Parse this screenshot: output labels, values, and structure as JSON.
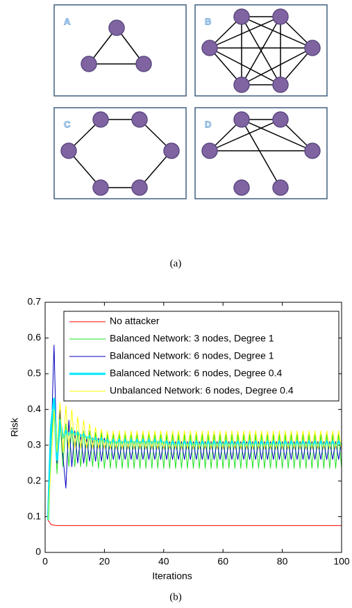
{
  "figure": {
    "panels": [
      {
        "label": "A"
      },
      {
        "label": "B"
      },
      {
        "label": "C"
      },
      {
        "label": "D"
      }
    ],
    "caption_a": "(a)",
    "caption_b": "(b)"
  },
  "chart_data": {
    "type": "line",
    "xlabel": "Iterations",
    "ylabel": "Risk",
    "xlim": [
      0,
      100
    ],
    "xticks": [
      0,
      20,
      40,
      60,
      80,
      100
    ],
    "ylim": [
      0,
      0.7
    ],
    "yticks": [
      0,
      0.1,
      0.2,
      0.3,
      0.4,
      0.5,
      0.6,
      0.7
    ],
    "legend": "upper right",
    "x": [
      1,
      2,
      3,
      4,
      5,
      6,
      7,
      8,
      9,
      10,
      11,
      12,
      13,
      14,
      15,
      16,
      17,
      18,
      19,
      20,
      21,
      22,
      23,
      24,
      25,
      26,
      27,
      28,
      29,
      30,
      31,
      32,
      33,
      34,
      35,
      36,
      37,
      38,
      39,
      40,
      41,
      42,
      43,
      44,
      45,
      46,
      47,
      48,
      49,
      50,
      51,
      52,
      53,
      54,
      55,
      56,
      57,
      58,
      59,
      60,
      61,
      62,
      63,
      64,
      65,
      66,
      67,
      68,
      69,
      70,
      71,
      72,
      73,
      74,
      75,
      76,
      77,
      78,
      79,
      80,
      81,
      82,
      83,
      84,
      85,
      86,
      87,
      88,
      89,
      90,
      91,
      92,
      93,
      94,
      95,
      96,
      97,
      98,
      99,
      100
    ],
    "series": [
      {
        "name": "No attacker",
        "color": "#ff0000",
        "width": 1,
        "values": [
          0.09,
          0.078,
          0.076,
          0.075,
          0.075,
          0.075,
          0.075,
          0.075,
          0.075,
          0.075,
          0.075,
          0.075,
          0.075,
          0.075,
          0.075,
          0.075,
          0.075,
          0.075,
          0.075,
          0.075,
          0.075,
          0.075,
          0.075,
          0.075,
          0.075,
          0.075,
          0.075,
          0.075,
          0.075,
          0.075,
          0.075,
          0.075,
          0.075,
          0.075,
          0.075,
          0.075,
          0.075,
          0.075,
          0.075,
          0.075,
          0.075,
          0.075,
          0.075,
          0.075,
          0.075,
          0.075,
          0.075,
          0.075,
          0.075,
          0.075,
          0.075,
          0.075,
          0.075,
          0.075,
          0.075,
          0.075,
          0.075,
          0.075,
          0.075,
          0.075,
          0.075,
          0.075,
          0.075,
          0.075,
          0.075,
          0.075,
          0.075,
          0.075,
          0.075,
          0.075,
          0.075,
          0.075,
          0.075,
          0.075,
          0.075,
          0.075,
          0.075,
          0.075,
          0.075,
          0.075,
          0.075,
          0.075,
          0.075,
          0.075,
          0.075,
          0.075,
          0.075,
          0.075,
          0.075,
          0.075,
          0.075,
          0.075,
          0.075,
          0.075,
          0.075,
          0.075,
          0.075,
          0.075,
          0.075,
          0.075
        ]
      },
      {
        "name": "Balanced Network: 3 nodes, Degree 1",
        "color": "#22e022",
        "width": 1,
        "values": [
          0.09,
          0.3,
          0.42,
          0.22,
          0.38,
          0.24,
          0.36,
          0.24,
          0.35,
          0.24,
          0.34,
          0.24,
          0.34,
          0.24,
          0.34,
          0.24,
          0.335,
          0.235,
          0.335,
          0.235,
          0.33,
          0.235,
          0.33,
          0.235,
          0.33,
          0.235,
          0.33,
          0.235,
          0.33,
          0.235,
          0.33,
          0.235,
          0.33,
          0.235,
          0.33,
          0.235,
          0.33,
          0.235,
          0.33,
          0.235,
          0.33,
          0.235,
          0.33,
          0.235,
          0.33,
          0.235,
          0.33,
          0.235,
          0.33,
          0.235,
          0.33,
          0.235,
          0.33,
          0.235,
          0.33,
          0.235,
          0.33,
          0.235,
          0.33,
          0.235,
          0.33,
          0.235,
          0.33,
          0.235,
          0.33,
          0.235,
          0.33,
          0.235,
          0.33,
          0.235,
          0.33,
          0.235,
          0.33,
          0.235,
          0.33,
          0.235,
          0.33,
          0.235,
          0.33,
          0.235,
          0.33,
          0.235,
          0.33,
          0.235,
          0.33,
          0.235,
          0.33,
          0.235,
          0.33,
          0.235,
          0.33,
          0.235,
          0.33,
          0.235,
          0.33,
          0.235,
          0.33,
          0.235,
          0.33,
          0.235
        ]
      },
      {
        "name": "Balanced Network: 6 nodes, Degree 1",
        "color": "#0000c0",
        "width": 1,
        "values": [
          0.09,
          0.3,
          0.58,
          0.25,
          0.4,
          0.27,
          0.18,
          0.37,
          0.24,
          0.34,
          0.25,
          0.33,
          0.25,
          0.32,
          0.255,
          0.32,
          0.255,
          0.32,
          0.255,
          0.32,
          0.26,
          0.31,
          0.26,
          0.31,
          0.26,
          0.31,
          0.26,
          0.31,
          0.26,
          0.31,
          0.26,
          0.31,
          0.26,
          0.31,
          0.26,
          0.31,
          0.26,
          0.31,
          0.26,
          0.31,
          0.26,
          0.31,
          0.26,
          0.31,
          0.26,
          0.31,
          0.26,
          0.31,
          0.26,
          0.31,
          0.26,
          0.31,
          0.26,
          0.31,
          0.26,
          0.31,
          0.26,
          0.31,
          0.26,
          0.31,
          0.26,
          0.31,
          0.26,
          0.31,
          0.26,
          0.31,
          0.26,
          0.31,
          0.26,
          0.31,
          0.26,
          0.31,
          0.26,
          0.31,
          0.26,
          0.31,
          0.26,
          0.31,
          0.26,
          0.31,
          0.26,
          0.31,
          0.26,
          0.31,
          0.26,
          0.31,
          0.26,
          0.31,
          0.26,
          0.31,
          0.26,
          0.31,
          0.26,
          0.31,
          0.26,
          0.31,
          0.26,
          0.31,
          0.26,
          0.31
        ]
      },
      {
        "name": "Balanced Network: 6 nodes, Degree 0.4",
        "color": "#00e5ff",
        "width": 3,
        "values": [
          0.09,
          0.35,
          0.43,
          0.26,
          0.37,
          0.32,
          0.34,
          0.33,
          0.34,
          0.33,
          0.335,
          0.325,
          0.33,
          0.32,
          0.325,
          0.315,
          0.32,
          0.31,
          0.32,
          0.31,
          0.315,
          0.305,
          0.315,
          0.305,
          0.315,
          0.305,
          0.315,
          0.305,
          0.315,
          0.305,
          0.315,
          0.305,
          0.315,
          0.305,
          0.315,
          0.305,
          0.315,
          0.305,
          0.315,
          0.305,
          0.31,
          0.3,
          0.31,
          0.3,
          0.31,
          0.3,
          0.31,
          0.3,
          0.31,
          0.3,
          0.31,
          0.3,
          0.31,
          0.3,
          0.31,
          0.3,
          0.31,
          0.3,
          0.31,
          0.3,
          0.31,
          0.3,
          0.31,
          0.3,
          0.31,
          0.3,
          0.31,
          0.3,
          0.31,
          0.3,
          0.31,
          0.3,
          0.31,
          0.3,
          0.31,
          0.3,
          0.31,
          0.3,
          0.31,
          0.3,
          0.31,
          0.3,
          0.31,
          0.3,
          0.31,
          0.3,
          0.31,
          0.3,
          0.31,
          0.3,
          0.31,
          0.3,
          0.31,
          0.3,
          0.31,
          0.3,
          0.31,
          0.3,
          0.31,
          0.3
        ]
      },
      {
        "name": "Unbalanced Network: 6 nodes, Degree 0.4",
        "color": "#ffff00",
        "width": 1,
        "values": [
          0.09,
          0.25,
          0.4,
          0.28,
          0.42,
          0.28,
          0.41,
          0.29,
          0.4,
          0.29,
          0.38,
          0.29,
          0.37,
          0.29,
          0.36,
          0.29,
          0.35,
          0.29,
          0.345,
          0.29,
          0.34,
          0.29,
          0.34,
          0.29,
          0.34,
          0.29,
          0.34,
          0.29,
          0.34,
          0.29,
          0.34,
          0.29,
          0.34,
          0.29,
          0.34,
          0.29,
          0.34,
          0.29,
          0.34,
          0.29,
          0.34,
          0.29,
          0.34,
          0.29,
          0.34,
          0.29,
          0.34,
          0.29,
          0.34,
          0.29,
          0.34,
          0.29,
          0.34,
          0.29,
          0.34,
          0.29,
          0.34,
          0.29,
          0.34,
          0.29,
          0.34,
          0.29,
          0.34,
          0.29,
          0.34,
          0.29,
          0.34,
          0.29,
          0.34,
          0.29,
          0.34,
          0.29,
          0.34,
          0.29,
          0.34,
          0.29,
          0.34,
          0.29,
          0.34,
          0.29,
          0.34,
          0.29,
          0.34,
          0.29,
          0.34,
          0.29,
          0.34,
          0.29,
          0.34,
          0.29,
          0.34,
          0.29,
          0.34,
          0.29,
          0.34,
          0.29,
          0.34,
          0.29,
          0.34,
          0.29
        ]
      }
    ]
  }
}
